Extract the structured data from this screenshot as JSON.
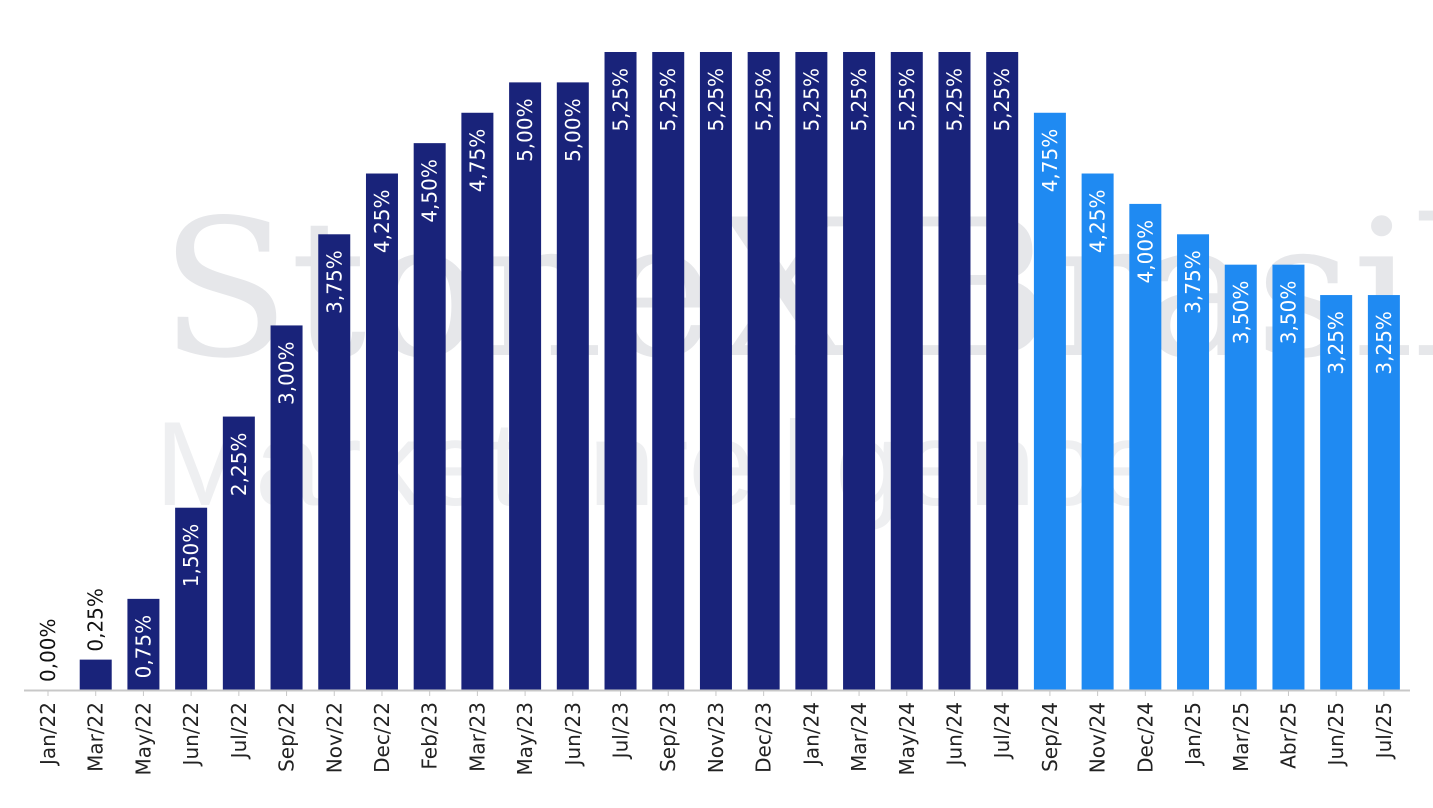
{
  "watermark": {
    "line1": "StoneX Brasil",
    "line2": "Market Intelligence"
  },
  "colors": {
    "historical": "#19237a",
    "projection": "#1f8af2",
    "axis": "#c8c8c8",
    "label_inside": "#ffffff",
    "label_outside": "#111111"
  },
  "chart_data": {
    "type": "bar",
    "categories": [
      "Jan/22",
      "Mar/22",
      "May/22",
      "Jun/22",
      "Jul/22",
      "Sep/22",
      "Nov/22",
      "Dec/22",
      "Feb/23",
      "Mar/23",
      "May/23",
      "Jun/23",
      "Jul/23",
      "Sep/23",
      "Nov/23",
      "Dec/23",
      "Jan/24",
      "Mar/24",
      "May/24",
      "Jun/24",
      "Jul/24",
      "Sep/24",
      "Nov/24",
      "Dec/24",
      "Jan/25",
      "Mar/25",
      "Abr/25",
      "Jun/25",
      "Jul/25"
    ],
    "values": [
      0.0,
      0.25,
      0.75,
      1.5,
      2.25,
      3.0,
      3.75,
      4.25,
      4.5,
      4.75,
      5.0,
      5.0,
      5.25,
      5.25,
      5.25,
      5.25,
      5.25,
      5.25,
      5.25,
      5.25,
      5.25,
      4.75,
      4.25,
      4.0,
      3.75,
      3.5,
      3.5,
      3.25,
      3.25
    ],
    "labels": [
      "0,00%",
      "0,25%",
      "0,75%",
      "1,50%",
      "2,25%",
      "3,00%",
      "3,75%",
      "4,25%",
      "4,50%",
      "4,75%",
      "5,00%",
      "5,00%",
      "5,25%",
      "5,25%",
      "5,25%",
      "5,25%",
      "5,25%",
      "5,25%",
      "5,25%",
      "5,25%",
      "5,25%",
      "4,75%",
      "4,25%",
      "4,00%",
      "3,75%",
      "3,50%",
      "3,50%",
      "3,25%",
      "3,25%"
    ],
    "series_type": [
      "historical",
      "historical",
      "historical",
      "historical",
      "historical",
      "historical",
      "historical",
      "historical",
      "historical",
      "historical",
      "historical",
      "historical",
      "historical",
      "historical",
      "historical",
      "historical",
      "historical",
      "historical",
      "historical",
      "historical",
      "historical",
      "projection",
      "projection",
      "projection",
      "projection",
      "projection",
      "projection",
      "projection",
      "projection"
    ],
    "ylim": [
      0,
      5.25
    ],
    "grid": false,
    "legend": "none",
    "title": "",
    "xlabel": "",
    "ylabel": ""
  }
}
